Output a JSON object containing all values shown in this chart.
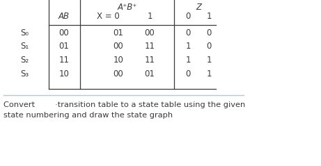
{
  "title_ab_plus": "A⁺B⁺",
  "title_z": "Z",
  "states": [
    "S₀",
    "S₁",
    "S₂",
    "S₃"
  ],
  "ab_vals": [
    "00",
    "01",
    "11",
    "10"
  ],
  "ab_plus_x0": [
    "01",
    "00",
    "10",
    "00"
  ],
  "ab_plus_x1": [
    "00",
    "11",
    "11",
    "01"
  ],
  "z_x0": [
    "0",
    "1",
    "1",
    "0"
  ],
  "z_x1": [
    "0",
    "0",
    "1",
    "1"
  ],
  "footer_line1": "Convert        ·transition table to a state table using the given",
  "footer_line2": "state numbering and draw the state graph",
  "bg_color": "#ffffff",
  "text_color": "#3a3a3a",
  "separator_color": "#b0c8d8"
}
